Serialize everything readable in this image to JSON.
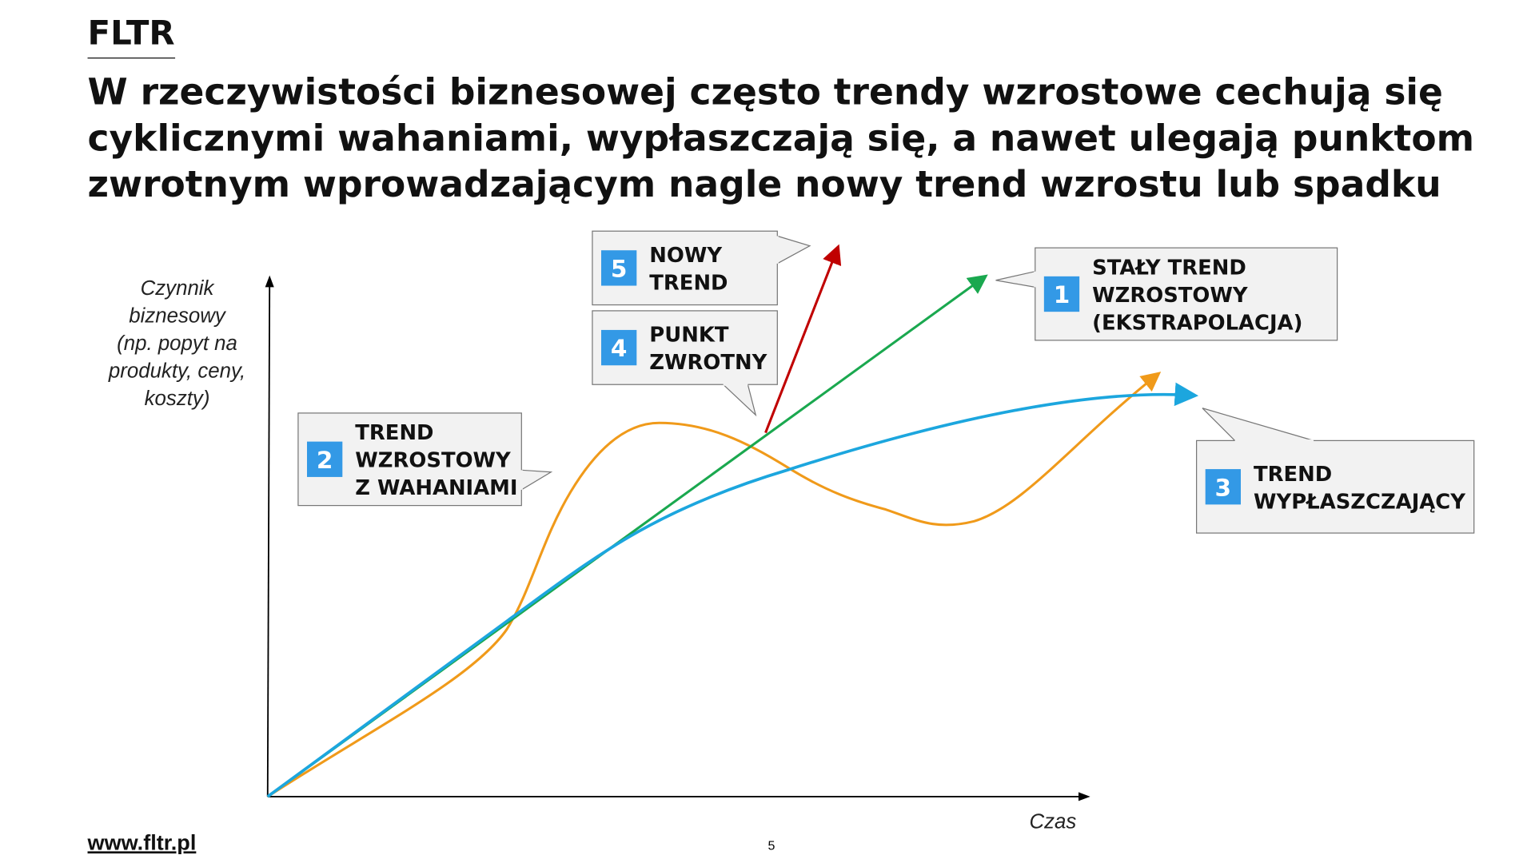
{
  "header": {
    "brand": "FLTR",
    "title_lines": [
      "W rzeczywistości biznesowej często trendy wzrostowe cechują się",
      "cyklicznymi wahaniami, wypłaszczają się, a nawet ulegają punktom",
      "zwrotnym wprowadzającym nagle nowy trend wzrostu lub spadku"
    ]
  },
  "diagram": {
    "y_axis_label_lines": [
      "Czynnik",
      "biznesowy",
      "(np. popyt na",
      "produkty, ceny,",
      "koszty)"
    ],
    "x_axis_label": "Czas",
    "callouts": [
      {
        "number": "1",
        "label_lines": [
          "STAŁY TREND",
          "WZROSTOWY",
          "(EKSTRAPOLACJA)"
        ]
      },
      {
        "number": "2",
        "label_lines": [
          "TREND",
          "WZROSTOWY",
          "Z WAHANIAMI"
        ]
      },
      {
        "number": "3",
        "label_lines": [
          "TREND",
          "WYPŁASZCZAJĄCY"
        ]
      },
      {
        "number": "4",
        "label_lines": [
          "PUNKT",
          "ZWROTNY"
        ]
      },
      {
        "number": "5",
        "label_lines": [
          "NOWY",
          "TREND"
        ]
      }
    ]
  },
  "footer": {
    "url": "www.fltr.pl",
    "page_number": "5"
  }
}
